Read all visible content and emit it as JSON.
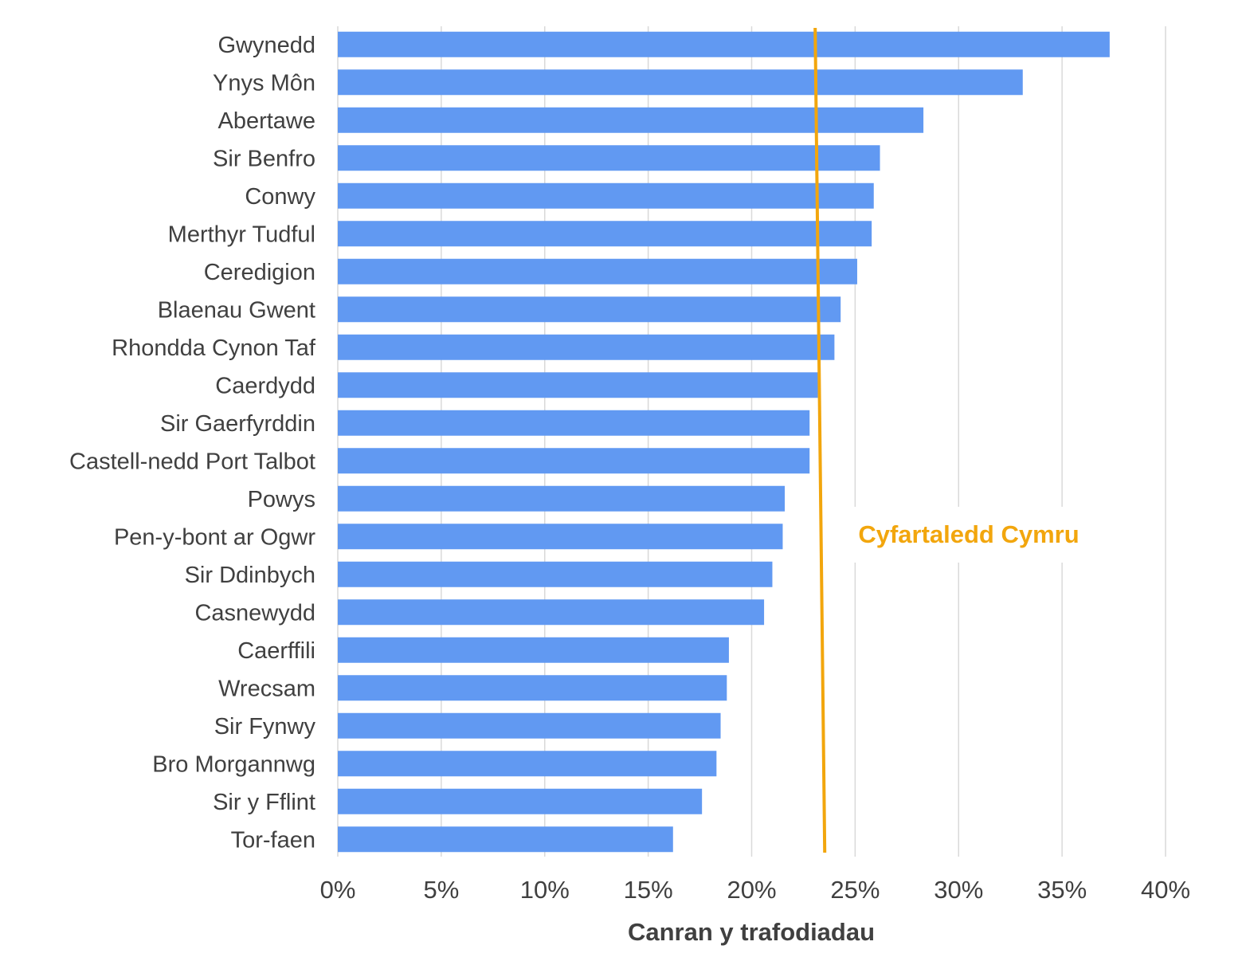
{
  "chart_data": {
    "type": "bar",
    "orientation": "horizontal",
    "title": "",
    "xlabel": "Canran y trafodiadau",
    "ylabel": "",
    "xlim": [
      0,
      40
    ],
    "ticks": [
      "0%",
      "5%",
      "10%",
      "15%",
      "20%",
      "25%",
      "30%",
      "35%",
      "40%"
    ],
    "grid": true,
    "bar_color": "#6199F2",
    "categories": [
      "Gwynedd",
      "Ynys Môn",
      "Abertawe",
      "Sir Benfro",
      "Conwy",
      "Merthyr Tudful",
      "Ceredigion",
      "Blaenau Gwent",
      "Rhondda Cynon Taf",
      "Caerdydd",
      "Sir Gaerfyrddin",
      "Castell-nedd Port Talbot",
      "Powys",
      "Pen-y-bont ar Ogwr",
      "Sir Ddinbych",
      "Casnewydd",
      "Caerffili",
      "Wrecsam",
      "Sir Fynwy",
      "Bro Morgannwg",
      "Sir y Fflint",
      "Tor-faen"
    ],
    "values": [
      37.3,
      33.1,
      28.3,
      26.2,
      25.9,
      25.8,
      25.1,
      24.3,
      24.0,
      23.2,
      22.8,
      22.8,
      21.6,
      21.5,
      21.0,
      20.6,
      18.9,
      18.8,
      18.5,
      18.3,
      17.6,
      16.2
    ],
    "average": {
      "label": "Cyfartaledd Cymru",
      "value": 23.3,
      "color": "#F2A60D"
    }
  }
}
